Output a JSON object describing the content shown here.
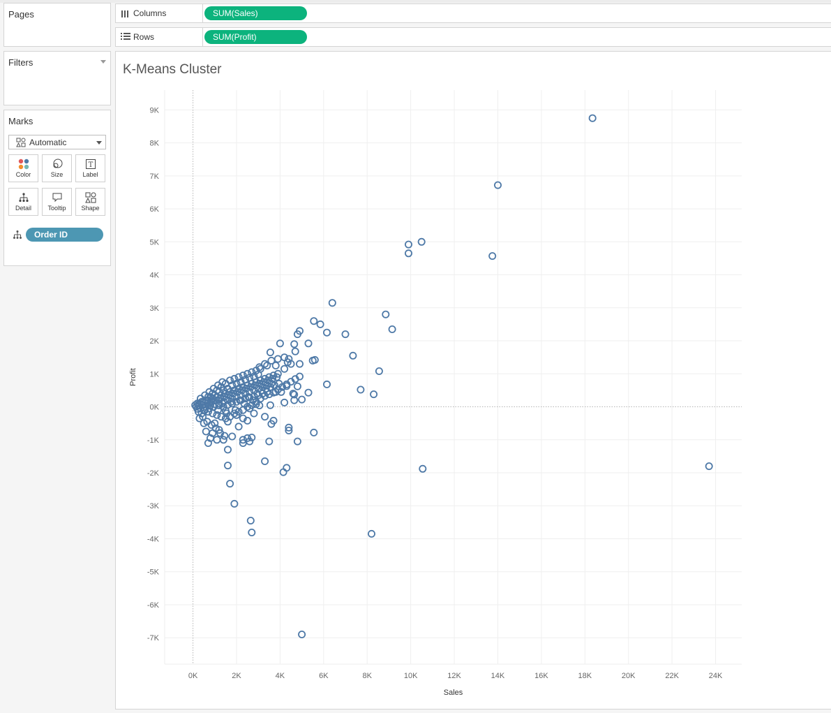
{
  "pages": {
    "title": "Pages"
  },
  "filters": {
    "title": "Filters"
  },
  "marks": {
    "title": "Marks",
    "mark_type": "Automatic",
    "buttons": [
      {
        "label": "Color",
        "icon": "color-icon"
      },
      {
        "label": "Size",
        "icon": "size-icon"
      },
      {
        "label": "Label",
        "icon": "label-icon"
      },
      {
        "label": "Detail",
        "icon": "detail-icon"
      },
      {
        "label": "Tooltip",
        "icon": "tooltip-icon"
      },
      {
        "label": "Shape",
        "icon": "shape-icon"
      }
    ],
    "detail_field": "Order ID"
  },
  "shelves": {
    "columns": {
      "label": "Columns",
      "pill": "SUM(Sales)"
    },
    "rows": {
      "label": "Rows",
      "pill": "SUM(Profit)"
    }
  },
  "colors": {
    "mark": "#4e79a7",
    "column_pill": "#0cb37d",
    "detail_pill": "#4d97b3"
  },
  "chart_data": {
    "type": "scatter",
    "title": "K-Means Cluster",
    "xlabel": "Sales",
    "ylabel": "Profit",
    "xlim": [
      -1300,
      25200
    ],
    "ylim": [
      -7800,
      9600
    ],
    "x_ticks": [
      0,
      2000,
      4000,
      6000,
      8000,
      10000,
      12000,
      14000,
      16000,
      18000,
      20000,
      22000,
      24000
    ],
    "x_tick_labels": [
      "0K",
      "2K",
      "4K",
      "6K",
      "8K",
      "10K",
      "12K",
      "14K",
      "16K",
      "18K",
      "20K",
      "22K",
      "24K"
    ],
    "y_ticks": [
      9000,
      8000,
      7000,
      6000,
      5000,
      4000,
      3000,
      2000,
      1000,
      0,
      -1000,
      -2000,
      -3000,
      -4000,
      -5000,
      -6000,
      -7000
    ],
    "y_tick_labels": [
      "9K",
      "8K",
      "7K",
      "6K",
      "5K",
      "4K",
      "3K",
      "2K",
      "1K",
      "0K",
      "-1K",
      "-2K",
      "-3K",
      "-4K",
      "-5K",
      "-6K",
      "-7K"
    ],
    "grid": true,
    "marker": "open-circle",
    "points": [
      [
        18350,
        8750
      ],
      [
        14000,
        6720
      ],
      [
        9900,
        4920
      ],
      [
        10500,
        5000
      ],
      [
        9900,
        4650
      ],
      [
        13750,
        4570
      ],
      [
        6400,
        3150
      ],
      [
        8850,
        2800
      ],
      [
        9150,
        2350
      ],
      [
        5550,
        2600
      ],
      [
        5850,
        2500
      ],
      [
        4900,
        2300
      ],
      [
        4800,
        2200
      ],
      [
        6150,
        2250
      ],
      [
        7000,
        2200
      ],
      [
        5300,
        1920
      ],
      [
        4000,
        1920
      ],
      [
        4650,
        1900
      ],
      [
        4700,
        1680
      ],
      [
        3550,
        1650
      ],
      [
        7350,
        1550
      ],
      [
        5600,
        1420
      ],
      [
        5500,
        1400
      ],
      [
        8550,
        1080
      ],
      [
        4400,
        1450
      ],
      [
        4200,
        1500
      ],
      [
        4350,
        1350
      ],
      [
        4500,
        1300
      ],
      [
        4200,
        1150
      ],
      [
        4900,
        1300
      ],
      [
        3800,
        1250
      ],
      [
        3400,
        1250
      ],
      [
        3050,
        1200
      ],
      [
        6150,
        680
      ],
      [
        7700,
        520
      ],
      [
        8300,
        380
      ],
      [
        4800,
        620
      ],
      [
        5300,
        430
      ],
      [
        4650,
        370
      ],
      [
        5000,
        220
      ],
      [
        4650,
        200
      ],
      [
        3800,
        450
      ],
      [
        4050,
        450
      ],
      [
        4300,
        630
      ],
      [
        4600,
        400
      ],
      [
        3550,
        50
      ],
      [
        4200,
        130
      ],
      [
        3050,
        40
      ],
      [
        2900,
        80
      ],
      [
        2600,
        -50
      ],
      [
        10550,
        -1880
      ],
      [
        23700,
        -1800
      ],
      [
        8200,
        -3850
      ],
      [
        5000,
        -6900
      ],
      [
        5550,
        -780
      ],
      [
        4800,
        -1050
      ],
      [
        4400,
        -630
      ],
      [
        4400,
        -720
      ],
      [
        3500,
        -1050
      ],
      [
        3700,
        -420
      ],
      [
        3600,
        -520
      ],
      [
        2700,
        -930
      ],
      [
        2500,
        -950
      ],
      [
        2300,
        -1000
      ],
      [
        2300,
        -1100
      ],
      [
        3300,
        -1650
      ],
      [
        4300,
        -1850
      ],
      [
        4150,
        -1980
      ],
      [
        2600,
        -1050
      ],
      [
        1600,
        -1780
      ],
      [
        1700,
        -2330
      ],
      [
        1900,
        -2940
      ],
      [
        2650,
        -3450
      ],
      [
        2700,
        -3810
      ],
      [
        2300,
        -350
      ],
      [
        2000,
        -250
      ],
      [
        1500,
        -120
      ],
      [
        1200,
        -700
      ],
      [
        900,
        -800
      ],
      [
        1100,
        -1000
      ],
      [
        700,
        -1100
      ],
      [
        1400,
        -1000
      ],
      [
        1600,
        -1300
      ],
      [
        1800,
        -900
      ],
      [
        2100,
        -600
      ],
      [
        800,
        -950
      ],
      [
        600,
        -750
      ],
      [
        1000,
        -500
      ],
      [
        1600,
        -450
      ],
      [
        2500,
        -420
      ],
      [
        3300,
        -300
      ],
      [
        2800,
        -200
      ],
      [
        200,
        -60
      ],
      [
        400,
        -200
      ],
      [
        300,
        -350
      ],
      [
        500,
        -500
      ],
      [
        100,
        50
      ],
      [
        300,
        100
      ],
      [
        500,
        150
      ],
      [
        700,
        200
      ],
      [
        900,
        250
      ],
      [
        1100,
        300
      ],
      [
        1300,
        350
      ],
      [
        1500,
        400
      ],
      [
        1700,
        450
      ],
      [
        1900,
        500
      ],
      [
        2100,
        550
      ],
      [
        2300,
        600
      ],
      [
        2500,
        650
      ],
      [
        2700,
        700
      ],
      [
        2900,
        750
      ],
      [
        3100,
        800
      ],
      [
        3300,
        850
      ],
      [
        3500,
        900
      ],
      [
        3700,
        950
      ],
      [
        3900,
        1000
      ],
      [
        1200,
        100
      ],
      [
        1400,
        150
      ],
      [
        1600,
        200
      ],
      [
        1800,
        250
      ],
      [
        2000,
        300
      ],
      [
        2200,
        350
      ],
      [
        2400,
        400
      ],
      [
        2600,
        450
      ],
      [
        2800,
        500
      ],
      [
        3000,
        550
      ],
      [
        3200,
        600
      ],
      [
        3400,
        650
      ],
      [
        3600,
        700
      ],
      [
        600,
        0
      ],
      [
        800,
        50
      ],
      [
        1000,
        80
      ],
      [
        1200,
        40
      ],
      [
        1400,
        0
      ],
      [
        1600,
        60
      ],
      [
        1800,
        100
      ],
      [
        2000,
        150
      ],
      [
        2200,
        200
      ],
      [
        2400,
        250
      ],
      [
        2600,
        280
      ],
      [
        2800,
        320
      ],
      [
        3000,
        350
      ],
      [
        3200,
        400
      ],
      [
        3400,
        450
      ],
      [
        700,
        300
      ],
      [
        900,
        400
      ],
      [
        1100,
        500
      ],
      [
        1300,
        600
      ],
      [
        1500,
        700
      ],
      [
        1700,
        800
      ],
      [
        1900,
        850
      ],
      [
        2100,
        900
      ],
      [
        2300,
        950
      ],
      [
        2500,
        1000
      ],
      [
        2700,
        1050
      ],
      [
        2900,
        1100
      ],
      [
        3100,
        1150
      ],
      [
        3300,
        1300
      ],
      [
        3600,
        1400
      ],
      [
        3900,
        1450
      ],
      [
        200,
        100
      ],
      [
        400,
        150
      ],
      [
        600,
        200
      ],
      [
        800,
        300
      ],
      [
        1000,
        350
      ],
      [
        1200,
        450
      ],
      [
        1400,
        500
      ],
      [
        1600,
        550
      ],
      [
        1800,
        650
      ],
      [
        2000,
        700
      ],
      [
        2200,
        750
      ],
      [
        2400,
        820
      ],
      [
        2600,
        880
      ],
      [
        2800,
        920
      ],
      [
        3000,
        980
      ],
      [
        500,
        -100
      ],
      [
        700,
        -150
      ],
      [
        900,
        -200
      ],
      [
        1100,
        -250
      ],
      [
        1300,
        -300
      ],
      [
        1500,
        -350
      ],
      [
        1700,
        -300
      ],
      [
        1900,
        -200
      ],
      [
        2100,
        -150
      ],
      [
        2300,
        -100
      ],
      [
        2500,
        0
      ],
      [
        2700,
        50
      ],
      [
        2900,
        150
      ],
      [
        3100,
        250
      ],
      [
        3300,
        330
      ],
      [
        3500,
        380
      ],
      [
        3700,
        430
      ],
      [
        3900,
        520
      ],
      [
        4100,
        600
      ],
      [
        4300,
        680
      ],
      [
        4500,
        760
      ],
      [
        4700,
        840
      ],
      [
        4900,
        920
      ],
      [
        250,
        -150
      ],
      [
        450,
        -300
      ],
      [
        650,
        -450
      ],
      [
        850,
        -550
      ],
      [
        1050,
        -650
      ],
      [
        1250,
        -800
      ],
      [
        1450,
        -880
      ],
      [
        350,
        250
      ],
      [
        550,
        350
      ],
      [
        750,
        450
      ],
      [
        950,
        550
      ],
      [
        1150,
        650
      ],
      [
        1350,
        750
      ],
      [
        150,
        0
      ],
      [
        250,
        50
      ],
      [
        350,
        -50
      ],
      [
        450,
        50
      ],
      [
        550,
        -100
      ],
      [
        650,
        100
      ],
      [
        750,
        -50
      ],
      [
        850,
        150
      ],
      [
        950,
        0
      ],
      [
        1050,
        200
      ],
      [
        1150,
        -100
      ],
      [
        1250,
        250
      ],
      [
        1350,
        100
      ],
      [
        1450,
        300
      ],
      [
        1550,
        -200
      ],
      [
        1650,
        350
      ],
      [
        1750,
        150
      ],
      [
        1850,
        400
      ],
      [
        1950,
        -100
      ],
      [
        2050,
        450
      ],
      [
        2150,
        200
      ],
      [
        2250,
        500
      ],
      [
        2350,
        100
      ],
      [
        2450,
        550
      ],
      [
        2550,
        300
      ],
      [
        2650,
        600
      ],
      [
        2750,
        200
      ],
      [
        2850,
        650
      ],
      [
        2950,
        400
      ],
      [
        3050,
        700
      ],
      [
        3150,
        500
      ],
      [
        3250,
        750
      ],
      [
        3350,
        550
      ],
      [
        3450,
        800
      ],
      [
        3550,
        600
      ],
      [
        3650,
        850
      ],
      [
        3750,
        650
      ],
      [
        3850,
        900
      ],
      [
        3950,
        700
      ]
    ]
  }
}
